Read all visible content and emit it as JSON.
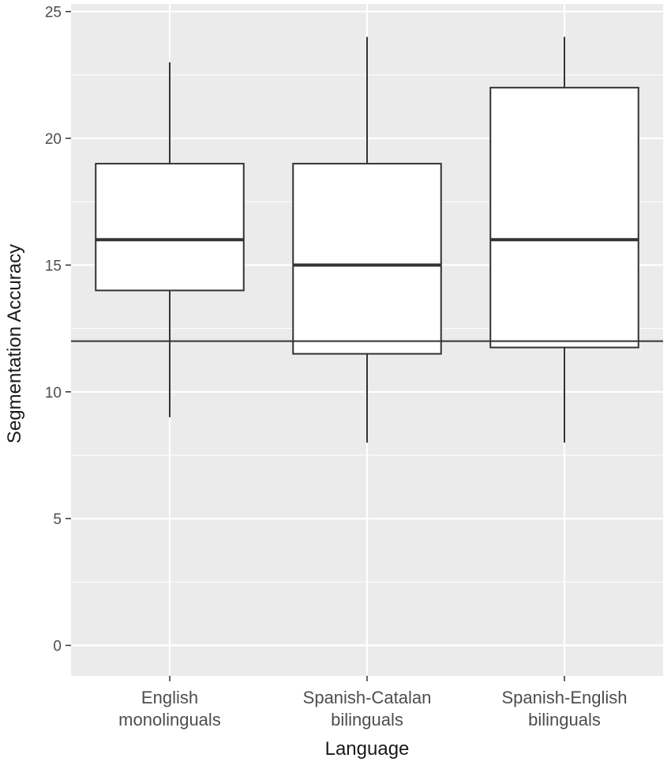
{
  "chart_data": {
    "type": "boxplot",
    "title": "",
    "xlabel": "Language",
    "ylabel": "Segmentation Accuracy",
    "ylim": [
      -1.2,
      25.3
    ],
    "yticks": [
      0,
      5,
      10,
      15,
      20,
      25
    ],
    "yticks_labels": [
      "0",
      "5",
      "10",
      "15",
      "20",
      "25"
    ],
    "categories": [
      [
        "English",
        "monolinguals"
      ],
      [
        "Spanish-Catalan",
        "bilinguals"
      ],
      [
        "Spanish-English",
        "bilinguals"
      ]
    ],
    "boxes": [
      {
        "whisker_low": 9,
        "q1": 14,
        "median": 16,
        "q3": 19,
        "whisker_high": 23
      },
      {
        "whisker_low": 8,
        "q1": 11.5,
        "median": 15,
        "q3": 19,
        "whisker_high": 24
      },
      {
        "whisker_low": 8,
        "q1": 11.75,
        "median": 16,
        "q3": 22,
        "whisker_high": 24
      }
    ],
    "reference_line": 12,
    "grid": true,
    "colors": {
      "panel": "#ebebeb",
      "grid": "#ffffff",
      "box_fill": "#ffffff",
      "box_stroke": "#333333",
      "reference": "#333333"
    }
  }
}
